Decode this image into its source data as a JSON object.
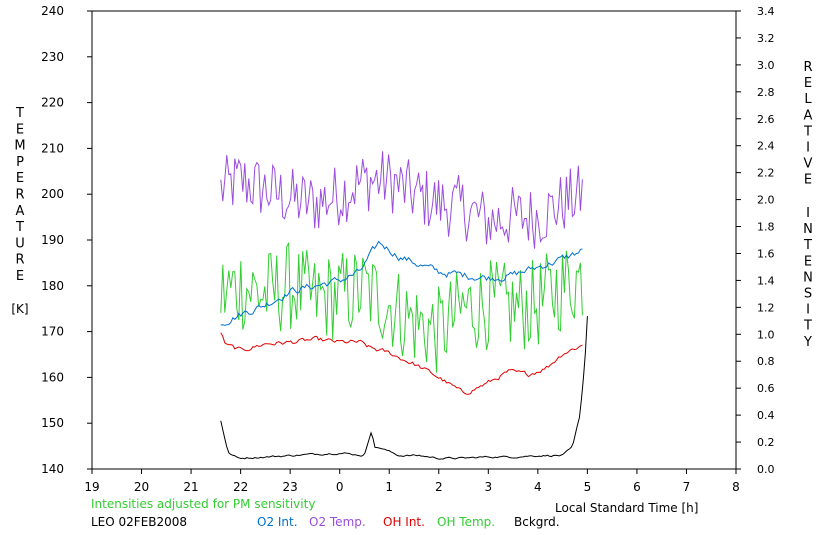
{
  "chart_data": {
    "type": "line",
    "y_left": {
      "label_letters": [
        "T",
        "E",
        "M",
        "P",
        "E",
        "R",
        "A",
        "T",
        "U",
        "R",
        "E"
      ],
      "unit": "[K]",
      "range": [
        140,
        240
      ],
      "ticks": [
        "140",
        "150",
        "160",
        "170",
        "180",
        "190",
        "200",
        "210",
        "220",
        "230",
        "240"
      ]
    },
    "y_right": {
      "label_word1": [
        "R",
        "E",
        "L",
        "A",
        "T",
        "I",
        "V",
        "E"
      ],
      "label_word2": [
        "I",
        "N",
        "T",
        "E",
        "N",
        "S",
        "I",
        "T",
        "Y"
      ],
      "range": [
        0,
        3.4
      ],
      "ticks": [
        "0.0",
        "0.2",
        "0.4",
        "0.6",
        "0.8",
        "1.0",
        "1.2",
        "1.4",
        "1.6",
        "1.8",
        "2.0",
        "2.2",
        "2.4",
        "2.6",
        "2.8",
        "3.0",
        "3.2",
        "3.4"
      ]
    },
    "x_axis": {
      "label": "Local Standard Time [h]",
      "range": [
        19,
        32
      ],
      "ticks": [
        "19",
        "20",
        "21",
        "22",
        "23",
        "0",
        "1",
        "2",
        "3",
        "4",
        "5",
        "6",
        "7",
        "8"
      ]
    },
    "note": "Intensities adjusted for PM sensitivity",
    "station": "LEO 02FEB2008",
    "legend": [
      {
        "name": "O2 Int.",
        "color": "#0070d0"
      },
      {
        "name": "O2 Temp.",
        "color": "#9a4ddb"
      },
      {
        "name": "OH Int.",
        "color": "#e00000"
      },
      {
        "name": "OH Temp.",
        "color": "#33cc33"
      },
      {
        "name": "Bckgrd.",
        "color": "#000000"
      }
    ],
    "series": [
      {
        "name": "O2 Temp.",
        "axis": "left",
        "color": "#9a4ddb",
        "noisy": true,
        "noise": 7,
        "x": [
          21.6,
          22.0,
          22.5,
          23.0,
          23.5,
          24.0,
          24.5,
          25.0,
          25.5,
          26.0,
          26.5,
          27.0,
          27.5,
          28.0,
          28.5,
          28.9
        ],
        "y": [
          201,
          203,
          201,
          199,
          198,
          200,
          203,
          203,
          200,
          198,
          197,
          194,
          195,
          195,
          198,
          200
        ]
      },
      {
        "name": "OH Temp.",
        "axis": "left",
        "color": "#33cc33",
        "noisy": true,
        "noise": 10,
        "x": [
          21.6,
          22.0,
          22.5,
          23.0,
          23.5,
          24.0,
          24.5,
          25.0,
          25.5,
          26.0,
          26.5,
          27.0,
          27.5,
          28.0,
          28.5,
          28.9
        ],
        "y": [
          178,
          180,
          178,
          180,
          177,
          178,
          179,
          176,
          172,
          170,
          175,
          176,
          175,
          176,
          180,
          182
        ]
      },
      {
        "name": "O2 Int.",
        "axis": "right",
        "color": "#0070d0",
        "noisy": true,
        "noise": 0.04,
        "x": [
          21.6,
          21.8,
          22.0,
          22.5,
          23.0,
          23.5,
          24.0,
          24.4,
          24.8,
          25.2,
          25.6,
          26.0,
          26.5,
          27.0,
          27.5,
          28.0,
          28.5,
          28.9
        ],
        "y": [
          1.08,
          1.12,
          1.15,
          1.22,
          1.32,
          1.36,
          1.4,
          1.46,
          1.68,
          1.58,
          1.52,
          1.46,
          1.44,
          1.42,
          1.44,
          1.5,
          1.56,
          1.62
        ]
      },
      {
        "name": "OH Int.",
        "axis": "right",
        "color": "#e00000",
        "noisy": true,
        "noise": 0.025,
        "x": [
          21.6,
          21.7,
          22.0,
          22.5,
          23.0,
          23.5,
          24.0,
          24.4,
          24.6,
          25.0,
          25.5,
          26.0,
          26.5,
          27.0,
          27.4,
          27.8,
          28.2,
          28.5,
          28.9
        ],
        "y": [
          1.02,
          0.92,
          0.88,
          0.93,
          0.94,
          0.96,
          0.94,
          0.94,
          0.9,
          0.86,
          0.78,
          0.68,
          0.56,
          0.64,
          0.72,
          0.7,
          0.76,
          0.86,
          0.92
        ]
      },
      {
        "name": "Bckgrd.",
        "axis": "right",
        "color": "#000000",
        "noisy": true,
        "noise": 0.01,
        "x": [
          21.6,
          21.75,
          21.95,
          22.5,
          23.0,
          23.5,
          24.0,
          24.5,
          24.65,
          24.7,
          24.8,
          25.2,
          25.6,
          26.0,
          26.5,
          27.0,
          27.5,
          28.0,
          28.5,
          28.7,
          28.85,
          28.95,
          29.0
        ],
        "y": [
          0.36,
          0.12,
          0.08,
          0.09,
          0.1,
          0.11,
          0.12,
          0.1,
          0.3,
          0.16,
          0.16,
          0.1,
          0.1,
          0.08,
          0.08,
          0.09,
          0.09,
          0.1,
          0.1,
          0.16,
          0.4,
          0.8,
          1.14
        ]
      }
    ]
  }
}
